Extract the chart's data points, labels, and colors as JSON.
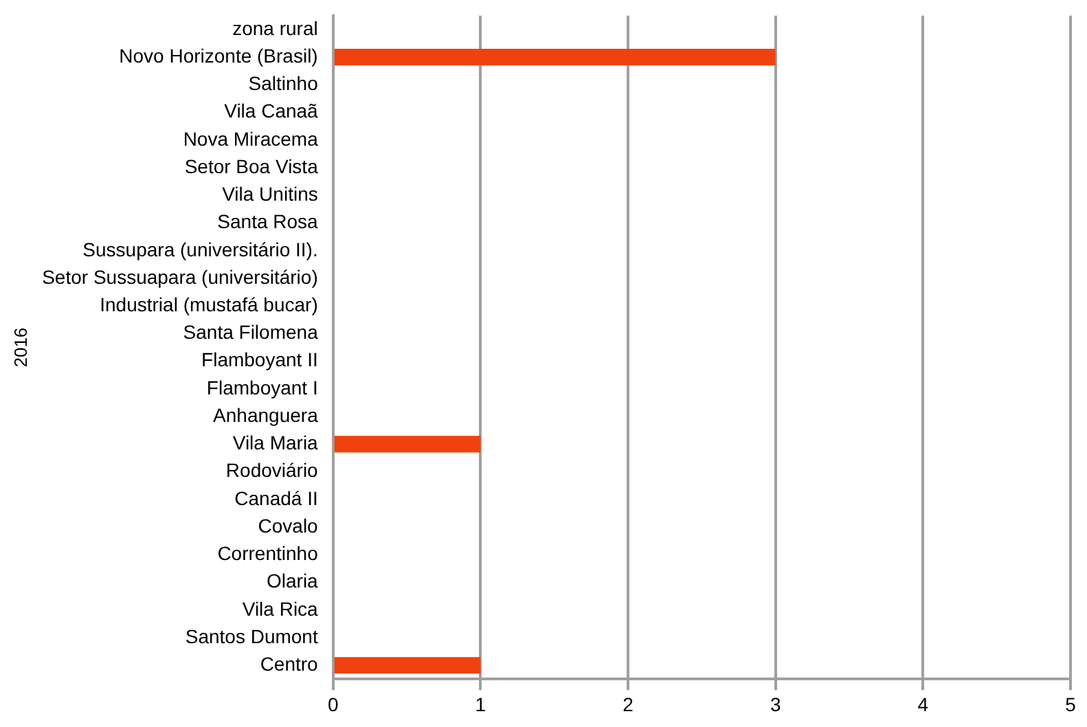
{
  "chart_data": {
    "type": "bar",
    "orientation": "horizontal",
    "ylabel": "2016",
    "categories": [
      "zona rural",
      "Novo Horizonte (Brasil)",
      "Saltinho",
      "Vila Canaã",
      "Nova Miracema",
      "Setor Boa Vista",
      "Vila Unitins",
      "Santa Rosa",
      "Sussupara (universitário II).",
      "Setor Sussuapara (universitário)",
      "Industrial (mustafá bucar)",
      "Santa Filomena",
      "Flamboyant II",
      "Flamboyant I",
      "Anhanguera",
      "Vila Maria",
      "Rodoviário",
      "Canadá II",
      "Covalo",
      "Correntinho",
      "Olaria",
      "Vila Rica",
      "Santos Dumont",
      "Centro"
    ],
    "values": [
      0,
      3,
      0,
      0,
      0,
      0,
      0,
      0,
      0,
      0,
      0,
      0,
      0,
      0,
      0,
      1,
      0,
      0,
      0,
      0,
      0,
      0,
      0,
      1
    ],
    "color": "#f0420e",
    "xlim": [
      0,
      5
    ],
    "xticks": [
      0,
      1,
      2,
      3,
      4,
      5
    ],
    "grid": "x",
    "legend": false
  }
}
